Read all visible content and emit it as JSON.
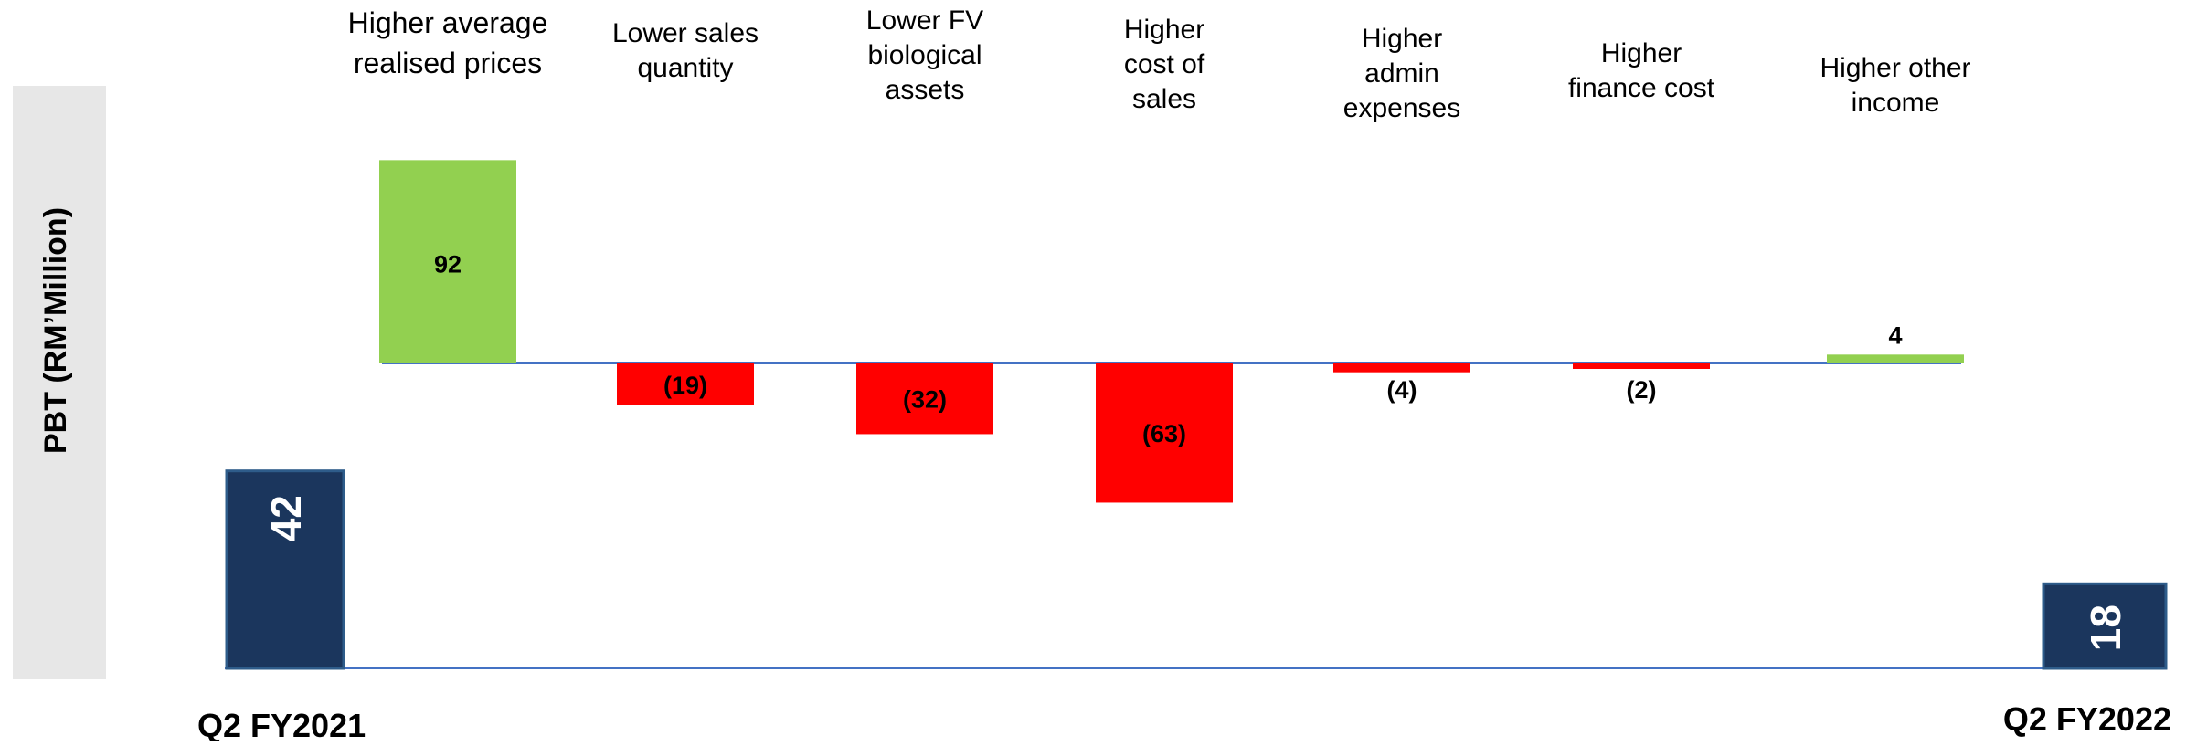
{
  "chart_data": {
    "type": "bar",
    "subtype": "waterfall",
    "ylabel": "PBT (RM’Million)",
    "start": {
      "label": "Q2 FY2021",
      "value": 42
    },
    "end": {
      "label": "Q2 FY2022",
      "value": 18
    },
    "steps": [
      {
        "label": "Higher average realised prices",
        "value": 92,
        "display": "92"
      },
      {
        "label": "Lower sales quantity",
        "value": -19,
        "display": "(19)"
      },
      {
        "label": "Lower FV biological assets",
        "value": -32,
        "display": "(32)"
      },
      {
        "label": "Higher cost of sales",
        "value": -63,
        "display": "(63)"
      },
      {
        "label": "Higher admin expenses",
        "value": -4,
        "display": "(4)"
      },
      {
        "label": "Higher finance cost",
        "value": -2,
        "display": "(2)"
      },
      {
        "label": "Higher other income",
        "value": 4,
        "display": "4"
      }
    ],
    "colors": {
      "total": "#1B365D",
      "increase": "#92D050",
      "decrease": "#FF0000",
      "axis": "#4472C4",
      "ylabel_panel": "#E7E7E7",
      "text": "#000000",
      "total_text": "#FFFFFF"
    },
    "legend": "none",
    "grid": false
  }
}
